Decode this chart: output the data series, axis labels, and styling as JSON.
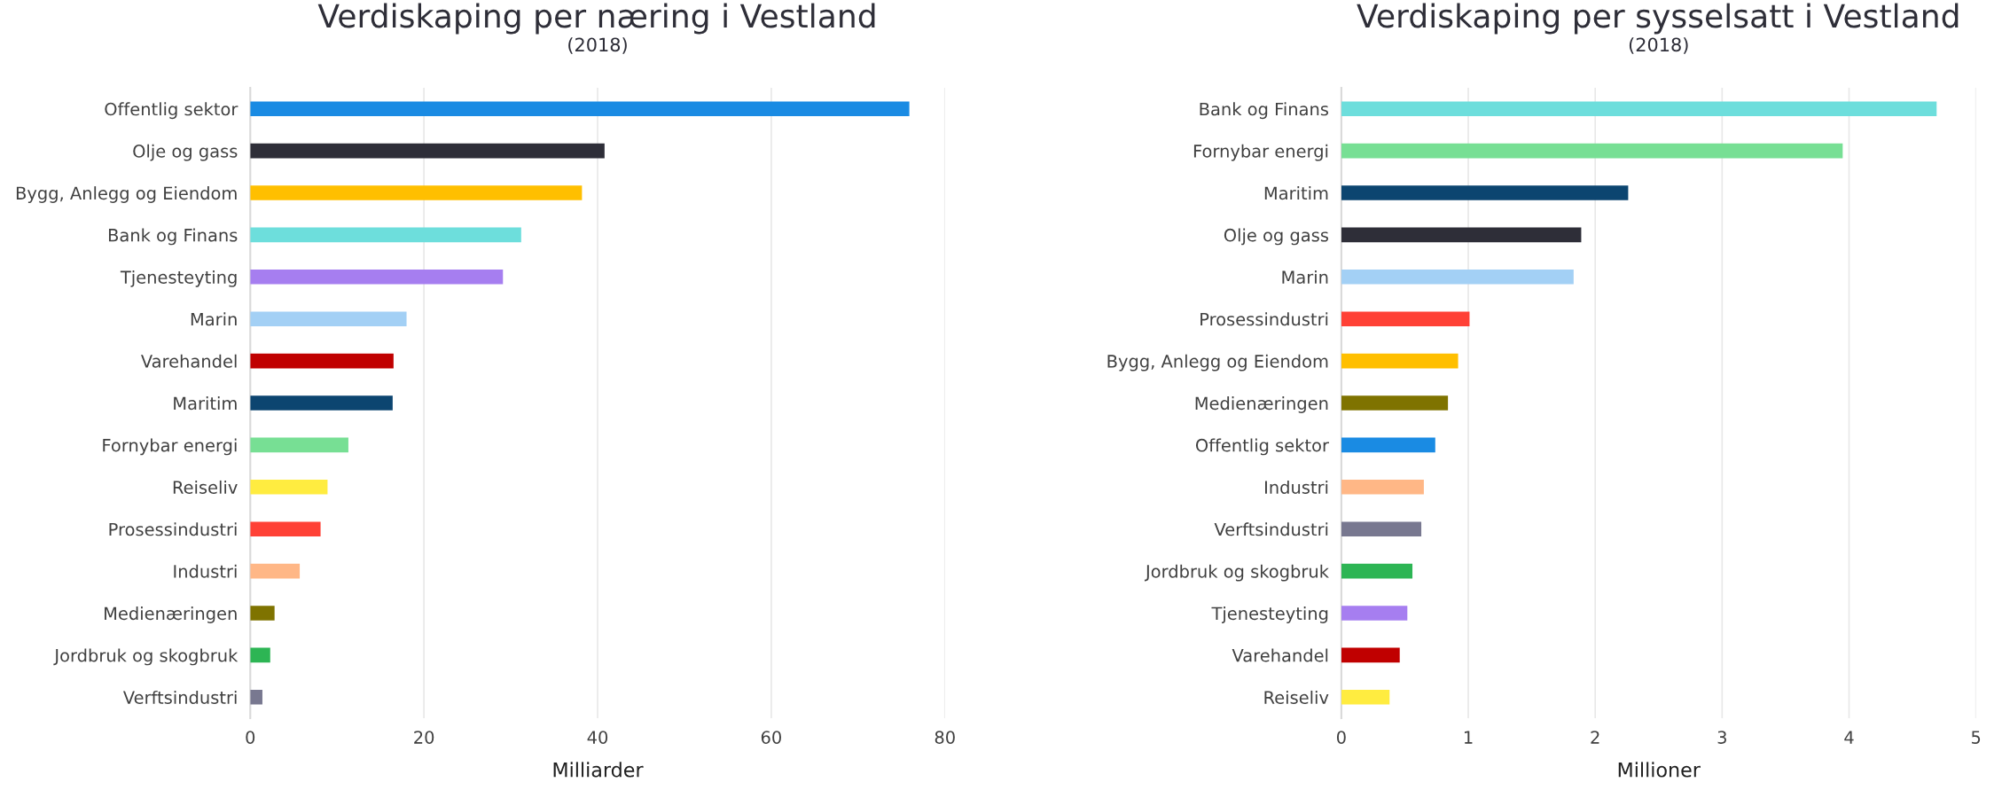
{
  "chart_data": [
    {
      "type": "bar",
      "orientation": "horizontal",
      "title": "Verdiskaping per næring i Vestland",
      "subtitle": "(2018)",
      "xlabel": "Milliarder",
      "categories": [
        "Offentlig sektor",
        "Olje og gass",
        "Bygg, Anlegg og Eiendom",
        "Bank og Finans",
        "Tjenesteyting",
        "Marin",
        "Varehandel",
        "Maritim",
        "Fornybar energi",
        "Reiseliv",
        "Prosessindustri",
        "Industri",
        "Medienæringen",
        "Jordbruk og skogbruk",
        "Verftsindustri"
      ],
      "values": [
        75.9,
        40.8,
        38.2,
        31.2,
        29.1,
        18.0,
        16.5,
        16.4,
        11.3,
        8.9,
        8.1,
        5.7,
        2.8,
        2.3,
        1.4
      ],
      "colors": [
        "#1a8be3",
        "#2e2e38",
        "#ffbf00",
        "#6ddedc",
        "#a67ef0",
        "#a3d0f5",
        "#c00000",
        "#0c4570",
        "#77df94",
        "#ffec40",
        "#ff4136",
        "#ffb786",
        "#7f7300",
        "#2db554",
        "#787890"
      ],
      "xlim": [
        0,
        80
      ],
      "xticks": [
        0,
        20,
        40,
        60,
        80
      ],
      "grid": "x"
    },
    {
      "type": "bar",
      "orientation": "horizontal",
      "title": "Verdiskaping per sysselsatt i Vestland",
      "subtitle": "(2018)",
      "xlabel": "Millioner",
      "categories": [
        "Bank og Finans",
        "Fornybar energi",
        "Maritim",
        "Olje og gass",
        "Marin",
        "Prosessindustri",
        "Bygg, Anlegg og Eiendom",
        "Medienæringen",
        "Offentlig sektor",
        "Industri",
        "Verftsindustri",
        "Jordbruk og skogbruk",
        "Tjenesteyting",
        "Varehandel",
        "Reiseliv"
      ],
      "values": [
        4.69,
        3.95,
        2.26,
        1.89,
        1.83,
        1.01,
        0.92,
        0.84,
        0.74,
        0.65,
        0.63,
        0.56,
        0.52,
        0.46,
        0.38
      ],
      "colors": [
        "#6ddedc",
        "#77df94",
        "#0c4570",
        "#2e2e38",
        "#a3d0f5",
        "#ff4136",
        "#ffbf00",
        "#7f7300",
        "#1a8be3",
        "#ffb786",
        "#787890",
        "#2db554",
        "#a67ef0",
        "#c00000",
        "#ffec40"
      ],
      "xlim": [
        0,
        5
      ],
      "xticks": [
        0,
        1,
        2,
        3,
        4,
        5
      ],
      "grid": "x"
    }
  ]
}
